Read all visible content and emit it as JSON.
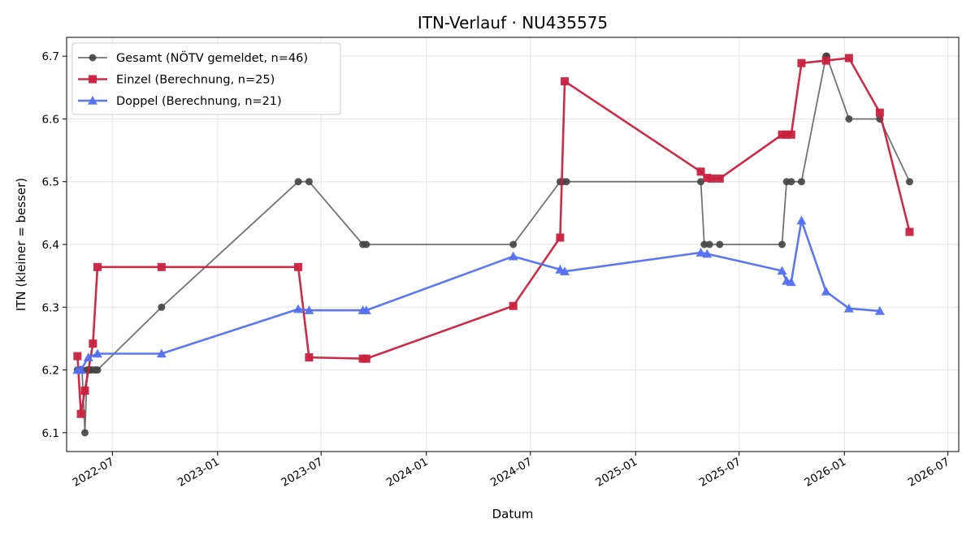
{
  "chart_data": {
    "type": "line",
    "title": "ITN-Verlauf · NU435575",
    "xlabel": "Datum",
    "ylabel": "ITN  (kleiner = besser)",
    "x_type": "date",
    "xlim": [
      "2022-04-12",
      "2026-07-20"
    ],
    "ylim": [
      6.07,
      6.73
    ],
    "x_ticks": [
      "2022-07-01",
      "2023-01-01",
      "2023-07-01",
      "2024-01-01",
      "2024-07-01",
      "2025-01-01",
      "2025-07-01",
      "2026-01-01",
      "2026-07-01"
    ],
    "x_tick_labels": [
      "2022-07",
      "2023-01",
      "2023-07",
      "2024-01",
      "2024-07",
      "2025-01",
      "2025-07",
      "2026-01",
      "2026-07"
    ],
    "y_ticks": [
      6.1,
      6.2,
      6.3,
      6.4,
      6.5,
      6.6,
      6.7
    ],
    "y_tick_labels": [
      "6.1",
      "6.2",
      "6.3",
      "6.4",
      "6.5",
      "6.6",
      "6.7"
    ],
    "grid": true,
    "legend_position": "top-left",
    "series": [
      {
        "name": "Gesamt (NÖTV gemeldet, n=46)",
        "color": "#444444",
        "marker": "circle",
        "x": [
          "2022-05-01",
          "2022-05-03",
          "2022-05-05",
          "2022-05-09",
          "2022-05-14",
          "2022-05-18",
          "2022-05-22",
          "2022-05-26",
          "2022-06-01",
          "2022-06-05",
          "2022-09-25",
          "2023-05-22",
          "2023-06-10",
          "2023-09-12",
          "2023-09-18",
          "2024-06-01",
          "2024-08-22",
          "2024-08-27",
          "2024-09-02",
          "2025-04-25",
          "2025-05-01",
          "2025-05-10",
          "2025-05-28",
          "2025-09-14",
          "2025-09-22",
          "2025-09-30",
          "2025-10-18",
          "2025-11-30",
          "2025-12-01",
          "2026-01-09",
          "2026-03-04",
          "2026-04-25"
        ],
        "y": [
          6.2,
          6.2,
          6.2,
          6.2,
          6.1,
          6.2,
          6.2,
          6.2,
          6.2,
          6.2,
          6.3,
          6.5,
          6.5,
          6.4,
          6.4,
          6.4,
          6.5,
          6.5,
          6.5,
          6.5,
          6.4,
          6.4,
          6.4,
          6.4,
          6.5,
          6.5,
          6.5,
          6.7,
          6.7,
          6.6,
          6.6,
          6.5
        ]
      },
      {
        "name": "Einzel (Berechnung, n=25)",
        "color": "#c8213f",
        "marker": "square",
        "x": [
          "2022-05-01",
          "2022-05-07",
          "2022-05-14",
          "2022-05-28",
          "2022-06-05",
          "2022-09-25",
          "2023-05-22",
          "2023-06-10",
          "2023-09-12",
          "2023-09-18",
          "2024-06-01",
          "2024-08-22",
          "2024-08-30",
          "2025-04-25",
          "2025-05-06",
          "2025-05-14",
          "2025-05-28",
          "2025-09-14",
          "2025-09-22",
          "2025-09-30",
          "2025-10-18",
          "2025-11-30",
          "2026-01-09",
          "2026-03-04",
          "2026-04-25"
        ],
        "y": [
          6.222,
          6.13,
          6.167,
          6.242,
          6.364,
          6.364,
          6.364,
          6.22,
          6.218,
          6.218,
          6.302,
          6.411,
          6.66,
          6.516,
          6.506,
          6.505,
          6.505,
          6.575,
          6.575,
          6.575,
          6.689,
          6.693,
          6.697,
          6.61,
          6.42
        ]
      },
      {
        "name": "Doppel (Berechnung, n=21)",
        "color": "#5470f0",
        "marker": "triangle",
        "x": [
          "2022-05-01",
          "2022-05-07",
          "2022-05-20",
          "2022-06-05",
          "2022-09-25",
          "2023-05-22",
          "2023-06-10",
          "2023-09-12",
          "2023-09-18",
          "2024-06-01",
          "2024-08-22",
          "2024-08-30",
          "2025-04-25",
          "2025-05-06",
          "2025-09-14",
          "2025-09-22",
          "2025-09-30",
          "2025-10-18",
          "2025-11-30",
          "2026-01-09",
          "2026-03-04"
        ],
        "y": [
          6.2,
          6.2,
          6.22,
          6.226,
          6.226,
          6.297,
          6.295,
          6.295,
          6.295,
          6.381,
          6.36,
          6.357,
          6.387,
          6.385,
          6.358,
          6.342,
          6.34,
          6.438,
          6.325,
          6.298,
          6.294
        ]
      }
    ]
  }
}
